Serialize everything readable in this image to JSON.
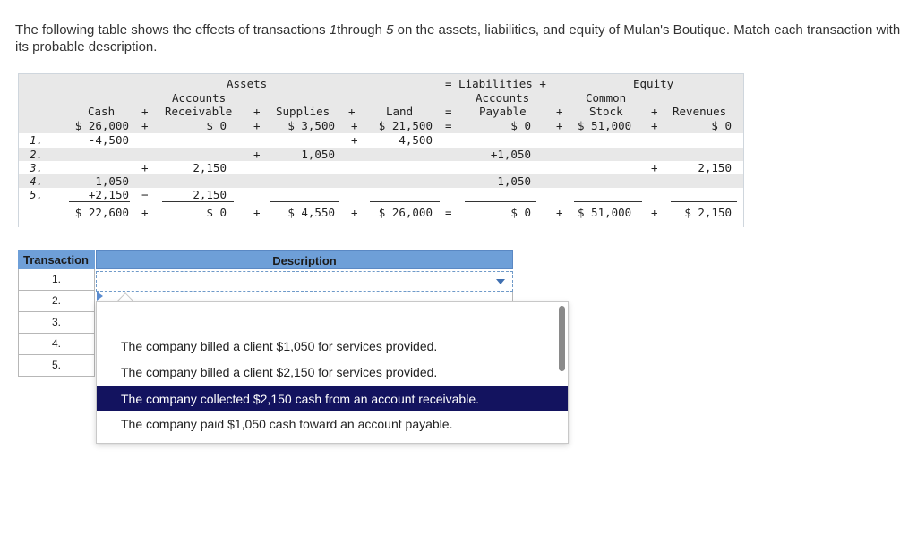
{
  "prompt": {
    "text_a": "The following table shows the effects of transactions ",
    "first": "1",
    "text_b": "through ",
    "last": "5",
    "text_c": " on the assets, liabilities, and equity of Mulan's Boutique. Match each transaction with its probable description."
  },
  "accounting": {
    "heading_assets": "Assets",
    "heading_eq_liab": "= Liabilities +",
    "heading_equity": "Equity",
    "col_cash": "Cash",
    "col_ar_1": "Accounts",
    "col_ar_2": "Receivable",
    "col_supplies": "Supplies",
    "col_land": "Land",
    "col_ap_1": "Accounts",
    "col_ap_2": "Payable",
    "col_cs_1": "Common",
    "col_cs_2": "Stock",
    "col_rev": "Revenues",
    "plus": "+",
    "minus": "−",
    "equals": "=",
    "row_labels": [
      "1.",
      "2.",
      "3.",
      "4.",
      "5."
    ],
    "begin": {
      "cash": "$ 26,000",
      "ar": "$ 0",
      "supplies": "$ 3,500",
      "land": "$ 21,500",
      "ap": "$ 0",
      "cs": "$ 51,000",
      "rev": "$ 0"
    },
    "r1": {
      "cash": "-4,500",
      "land": "4,500"
    },
    "r2": {
      "supplies": "1,050",
      "ap": "+1,050"
    },
    "r3": {
      "ar": "2,150",
      "rev": "2,150"
    },
    "r4": {
      "cash": "-1,050",
      "ap": "-1,050"
    },
    "r5": {
      "cash": "+2,150",
      "ar": "2,150"
    },
    "totals": {
      "cash": "$ 22,600",
      "ar": "$ 0",
      "supplies": "$ 4,550",
      "land": "$ 26,000",
      "ap": "$ 0",
      "cs": "$ 51,000",
      "rev": "$ 2,150"
    }
  },
  "matching": {
    "header_transaction": "Transaction",
    "header_description": "Description",
    "rows": [
      "1.",
      "2.",
      "3.",
      "4.",
      "5."
    ],
    "options": [
      "The company billed a client $1,050 for services provided.",
      "The company billed a client $2,150 for services provided.",
      "The company collected $2,150 cash from an account receivable.",
      "The company paid $1,050 cash toward an account payable."
    ],
    "highlighted_option": 2
  },
  "colors": {
    "header_blue": "#6e9fd8",
    "highlight_navy": "#13135f",
    "table_gray": "#e8e8e8"
  }
}
